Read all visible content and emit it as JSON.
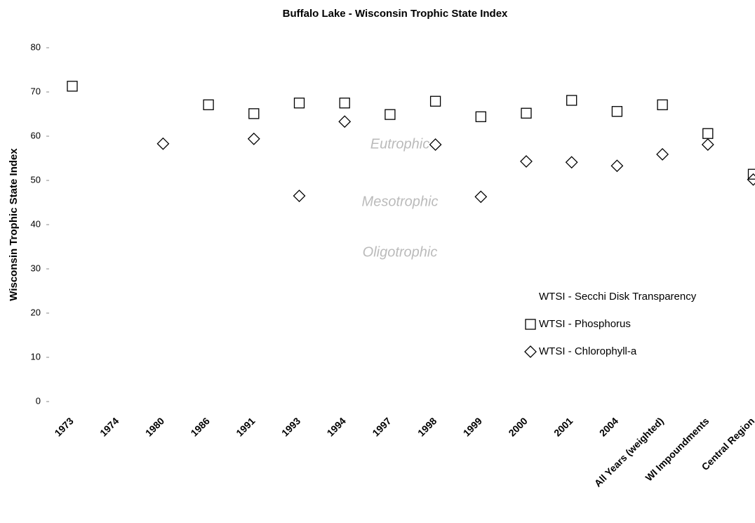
{
  "chart_data": {
    "type": "scatter",
    "title": "Buffalo Lake - Wisconsin Trophic State Index",
    "y_label": "Wisconsin Trophic State Index",
    "categories": [
      "1973",
      "1974",
      "1980",
      "1986",
      "1991",
      "1993",
      "1994",
      "1997",
      "1998",
      "1999",
      "2000",
      "2001",
      "2004",
      "All Years (weighted)",
      "WI Impoundments",
      "Central Region"
    ],
    "series": [
      {
        "name": "WTSI - Secchi Disk Transparency",
        "color": "#000000",
        "marker": "none",
        "values": [
          null,
          null,
          null,
          null,
          null,
          null,
          null,
          null,
          null,
          null,
          null,
          null,
          null,
          null,
          null,
          null
        ]
      },
      {
        "name": "WTSI - Phosphorus",
        "color": "#000000",
        "marker": "square",
        "values": [
          71.3,
          null,
          null,
          67.1,
          65.1,
          67.5,
          67.5,
          64.9,
          67.9,
          64.4,
          65.2,
          68.1,
          65.6,
          67.1,
          60.6,
          51.4
        ]
      },
      {
        "name": "WTSI - Chlorophyll-a",
        "color": "#000000",
        "marker": "diamond",
        "values": [
          null,
          null,
          58.3,
          null,
          59.4,
          46.5,
          63.3,
          null,
          58.1,
          46.3,
          54.3,
          54.1,
          53.3,
          55.9,
          58.1,
          50.2
        ]
      }
    ],
    "annotations": [
      "Eutrophic",
      "Mesotrophic",
      "Oligotrophic"
    ],
    "ylim": [
      0,
      80
    ],
    "yticks": [
      0,
      10,
      20,
      30,
      40,
      50,
      60,
      70,
      80
    ],
    "grid": false,
    "legend": "right"
  }
}
